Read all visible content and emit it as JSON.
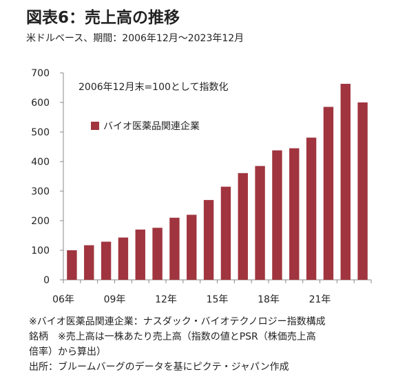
{
  "title": "図表6：売上高の推移",
  "subtitle": "米ドルベース、期間：2006年12月～2023年12月",
  "notes": [
    "※バイオ医薬品関連企業：ナスダック・バイオテクノロジー指数構成",
    "銘柄　※売上高は一株あたり売上高（指数の値とPSR（株価売上高",
    "倍率）から算出）",
    "出所：ブルームバーグのデータを基にピクテ・ジャパン作成"
  ],
  "chart_data": {
    "type": "bar",
    "annotation": "2006年12月末=100として指数化",
    "series": [
      {
        "name": "バイオ医薬品関連企業",
        "color": "#a0353f",
        "values": [
          100,
          117,
          129,
          143,
          170,
          176,
          210,
          220,
          270,
          315,
          361,
          385,
          438,
          445,
          481,
          585,
          663,
          600
        ]
      }
    ],
    "x_tick_labels": [
      "06年",
      "",
      "",
      "09年",
      "",
      "",
      "12年",
      "",
      "",
      "15年",
      "",
      "",
      "18年",
      "",
      "",
      "21年",
      "",
      ""
    ],
    "ylim": [
      0,
      700
    ],
    "yticks": [
      0,
      100,
      200,
      300,
      400,
      500,
      600,
      700
    ],
    "grid": false,
    "legend_position": "top-left"
  }
}
